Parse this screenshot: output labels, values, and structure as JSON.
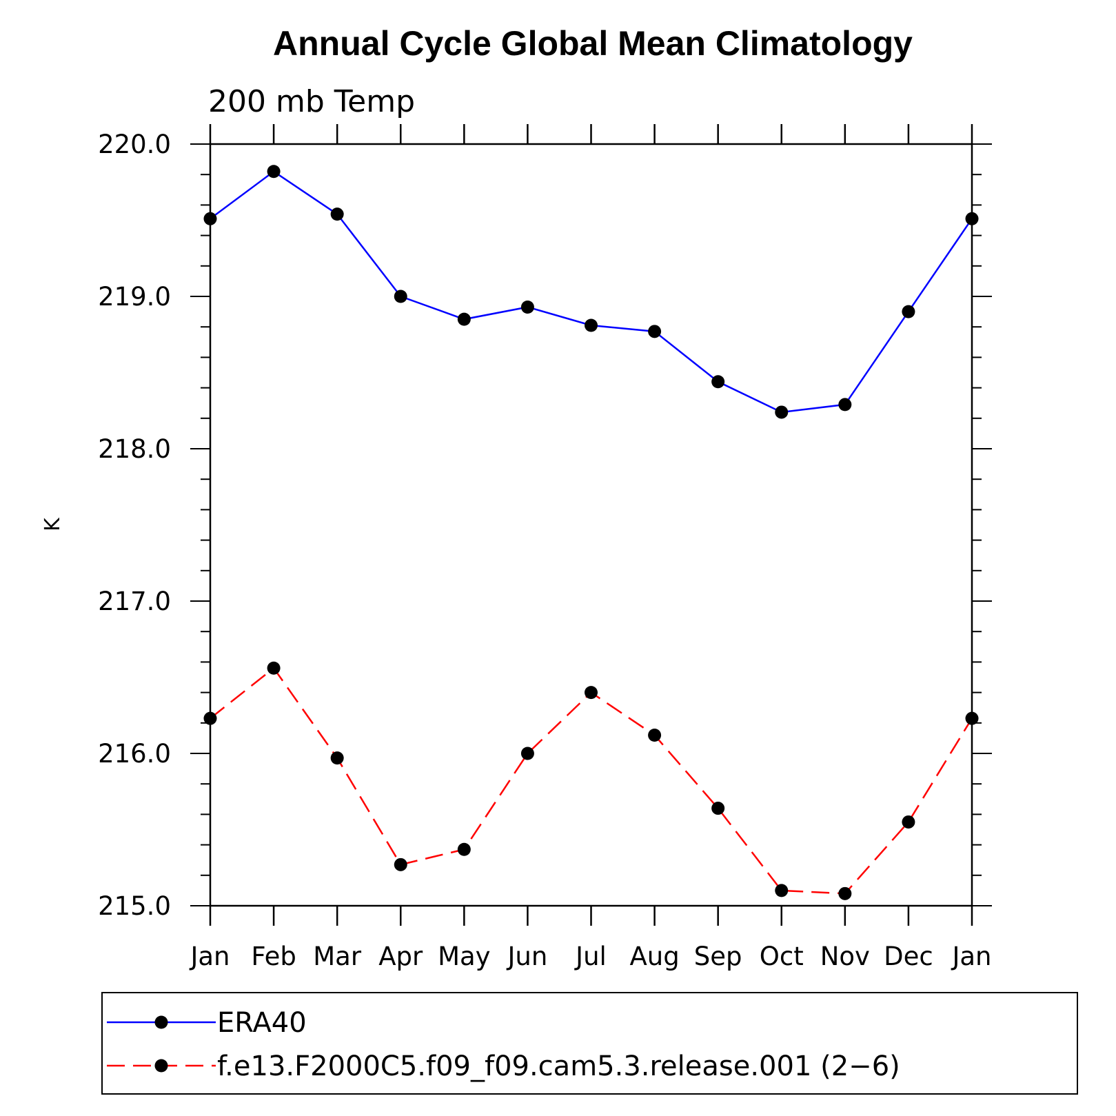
{
  "chart_data": {
    "type": "line",
    "title": "Annual Cycle Global Mean Climatology",
    "subtitle": "200 mb Temp",
    "xlabel": "",
    "ylabel": "K",
    "categories": [
      "Jan",
      "Feb",
      "Mar",
      "Apr",
      "May",
      "Jun",
      "Jul",
      "Aug",
      "Sep",
      "Oct",
      "Nov",
      "Dec",
      "Jan"
    ],
    "ylim": [
      215.0,
      220.0
    ],
    "yticks": [
      "215.0",
      "216.0",
      "217.0",
      "218.0",
      "219.0",
      "220.0"
    ],
    "yminor_step": 0.2,
    "grid": false,
    "legend_position": "bottom",
    "series": [
      {
        "name": "ERA40",
        "color": "#0000ff",
        "dash": "solid",
        "values": [
          219.51,
          219.82,
          219.54,
          219.0,
          218.85,
          218.93,
          218.81,
          218.77,
          218.44,
          218.24,
          218.29,
          218.9,
          219.51
        ]
      },
      {
        "name": "f.e13.F2000C5.f09_f09.cam5.3.release.001 (2−6)",
        "color": "#ff0000",
        "dash": "dashed",
        "values": [
          216.23,
          216.56,
          215.97,
          215.27,
          215.37,
          216.0,
          216.4,
          216.12,
          215.64,
          215.1,
          215.08,
          215.55,
          216.23
        ]
      }
    ]
  }
}
